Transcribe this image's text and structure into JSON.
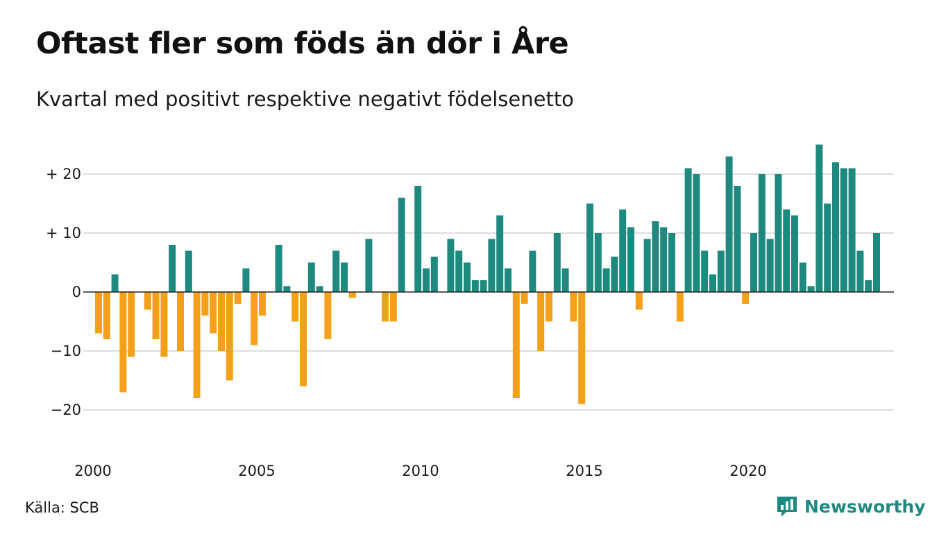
{
  "title": "Oftast fler som föds än dör i Åre",
  "subtitle": "Kvartal med positivt respektive negativt födelsenetto",
  "source": "Källa: SCB",
  "brand": "Newsworthy",
  "colors": {
    "positive": "#1e8a7f",
    "negative": "#f5a01a",
    "grid": "#dedede",
    "baseline": "#222222"
  },
  "chart_data": {
    "type": "bar",
    "title": "Oftast fler som föds än dör i Åre",
    "subtitle": "Kvartal med positivt respektive negativt födelsenetto",
    "x_ticks": [
      {
        "label": "2000",
        "year": 2000
      },
      {
        "label": "2005",
        "year": 2005
      },
      {
        "label": "2010",
        "year": 2010
      },
      {
        "label": "2015",
        "year": 2015
      },
      {
        "label": "2020",
        "year": 2020
      }
    ],
    "y_ticks": [
      {
        "value": 20,
        "label": "+ 20"
      },
      {
        "value": 10,
        "label": "+ 10"
      },
      {
        "value": 0,
        "label": "0"
      },
      {
        "value": -10,
        "label": "−10"
      },
      {
        "value": -20,
        "label": "−20"
      }
    ],
    "ylim": [
      -25,
      25
    ],
    "grid": true,
    "first_quarter": "2000 Q1",
    "values": [
      -7,
      -8,
      3,
      -17,
      -11,
      0,
      -3,
      -8,
      -11,
      8,
      -10,
      7,
      -18,
      -4,
      -7,
      -10,
      -15,
      -2,
      4,
      -9,
      -4,
      0,
      8,
      1,
      -5,
      -16,
      5,
      1,
      -8,
      7,
      5,
      -1,
      0,
      9,
      0,
      -5,
      -5,
      16,
      0,
      18,
      4,
      6,
      0,
      9,
      7,
      5,
      2,
      2,
      9,
      13,
      4,
      -18,
      -2,
      7,
      -10,
      -5,
      10,
      4,
      -5,
      -19,
      15,
      10,
      4,
      6,
      14,
      11,
      -3,
      9,
      12,
      11,
      10,
      -5,
      21,
      20,
      7,
      3,
      7,
      23,
      18,
      -2,
      10,
      20,
      9,
      20,
      14,
      13,
      5,
      1,
      25,
      15,
      22,
      21,
      21,
      7,
      2,
      10
    ]
  }
}
